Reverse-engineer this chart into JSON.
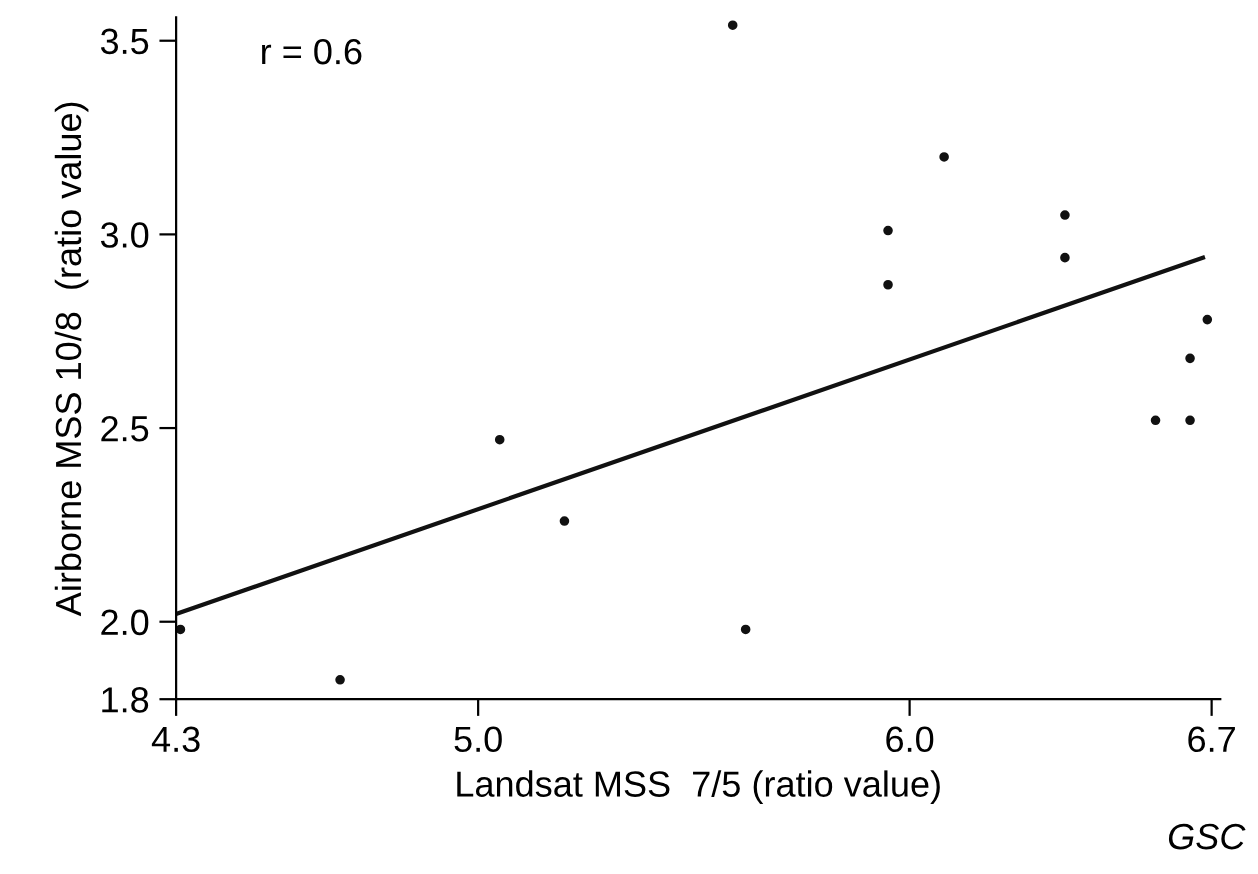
{
  "chart_data": {
    "type": "scatter",
    "xlabel": "Landsat MSS  7/5 (ratio value)",
    "ylabel": "Airborne MSS 10/8  (ratio value)",
    "xlim": [
      4.3,
      6.72
    ],
    "ylim": [
      1.8,
      3.56
    ],
    "xticks": [
      4.3,
      {
        "value": 5,
        "label": "5.0"
      },
      {
        "value": 6,
        "label": "6.0"
      },
      6.7
    ],
    "yticks": [
      1.8,
      {
        "value": 2,
        "label": "2.0"
      },
      2.5,
      {
        "value": 3,
        "label": "3.0"
      },
      3.5
    ],
    "grid": false,
    "marker": "circle",
    "series": [
      {
        "color": "#111111",
        "x": [
          4.31,
          4.68,
          5.05,
          5.2,
          5.59,
          5.62,
          5.95,
          5.95,
          6.08,
          6.36,
          6.36,
          6.57,
          6.65,
          6.65,
          6.69
        ],
        "values": [
          1.98,
          1.85,
          2.47,
          2.26,
          3.54,
          1.98,
          3.01,
          2.87,
          3.2,
          3.05,
          2.94,
          2.52,
          2.52,
          2.68,
          2.78
        ]
      },
      {
        "type": "line",
        "color": "#111111",
        "x": [
          4.3,
          6.68
        ],
        "values": [
          2.02,
          2.94
        ],
        "marker": "none"
      }
    ],
    "annotations": [
      "r = 0.6",
      "GSC"
    ]
  }
}
